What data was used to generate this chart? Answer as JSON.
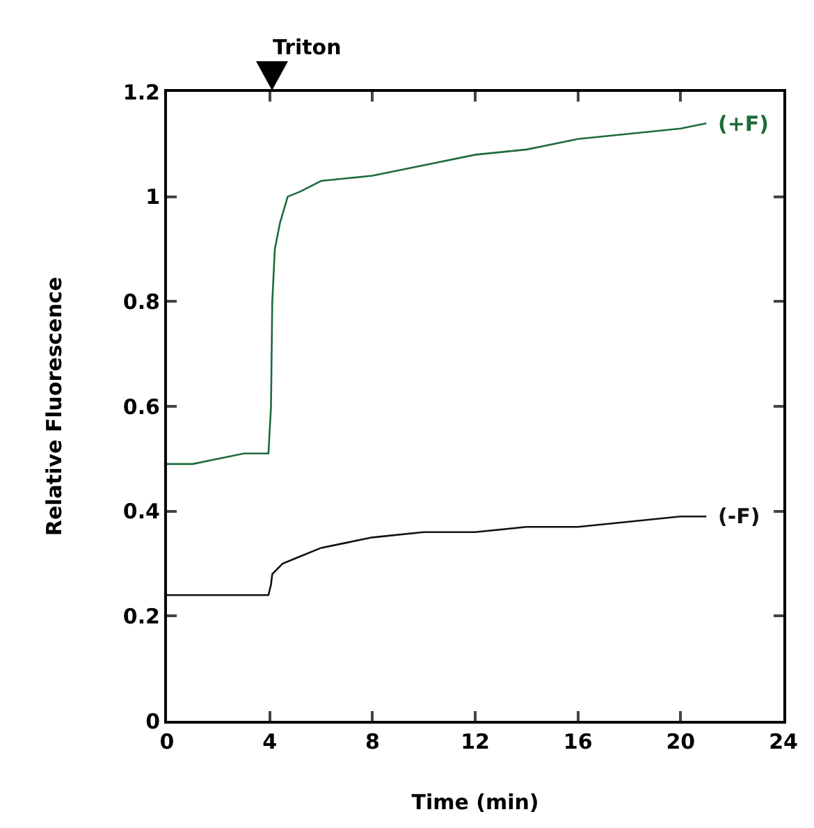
{
  "chart_data": {
    "type": "line",
    "xlabel": "Time (min)",
    "ylabel": "Relative Fluorescence",
    "xlim": [
      0,
      24
    ],
    "xticks": [
      0,
      4,
      8,
      12,
      16,
      20,
      24
    ],
    "ylim": [
      0,
      1.2
    ],
    "yticks": [
      0,
      0.2,
      0.4,
      0.6,
      0.8,
      1,
      1.2
    ],
    "grid": false,
    "legend": false,
    "marker": "none",
    "line_style": "solid",
    "series": [
      {
        "name": "(+F)",
        "color": "#1e6b3c",
        "x": [
          0,
          1,
          2,
          3,
          3.95,
          4.05,
          4.1,
          4.2,
          4.4,
          4.7,
          5.2,
          6,
          7,
          8,
          10,
          12,
          14,
          16,
          18,
          20,
          21
        ],
        "values": [
          0.49,
          0.49,
          0.5,
          0.51,
          0.51,
          0.6,
          0.8,
          0.9,
          0.95,
          1.0,
          1.01,
          1.03,
          1.035,
          1.04,
          1.06,
          1.08,
          1.09,
          1.11,
          1.12,
          1.13,
          1.14
        ]
      },
      {
        "name": "(-F)",
        "color": "#111111",
        "x": [
          0,
          1,
          2,
          3,
          3.95,
          4.05,
          4.1,
          4.5,
          5,
          6,
          7,
          8,
          10,
          12,
          14,
          16,
          18,
          20,
          21
        ],
        "values": [
          0.24,
          0.24,
          0.24,
          0.24,
          0.24,
          0.26,
          0.28,
          0.3,
          0.31,
          0.33,
          0.34,
          0.35,
          0.36,
          0.36,
          0.37,
          0.37,
          0.38,
          0.39,
          0.39
        ]
      }
    ],
    "annotations": [
      "Triton"
    ]
  }
}
